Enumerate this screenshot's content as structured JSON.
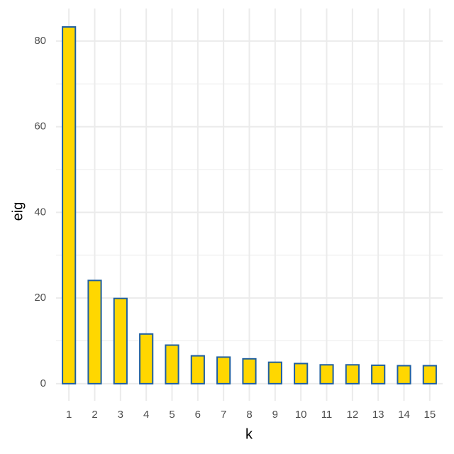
{
  "chart_data": {
    "type": "bar",
    "x_label": "k",
    "y_label": "eig",
    "categories": [
      "1",
      "2",
      "3",
      "4",
      "5",
      "6",
      "7",
      "8",
      "9",
      "10",
      "11",
      "12",
      "13",
      "14",
      "15"
    ],
    "values": [
      83.3,
      24.1,
      19.9,
      11.6,
      9.0,
      6.5,
      6.2,
      5.8,
      5.0,
      4.7,
      4.4,
      4.4,
      4.3,
      4.2,
      4.2
    ],
    "color": "#ffd700",
    "edge_color": "#1f5fa0",
    "ylim": [
      -4.0,
      87.6
    ],
    "yticks": [
      0,
      20,
      40,
      60,
      80
    ],
    "minor_yticks": [
      10,
      30,
      50,
      70
    ],
    "grid": true
  }
}
